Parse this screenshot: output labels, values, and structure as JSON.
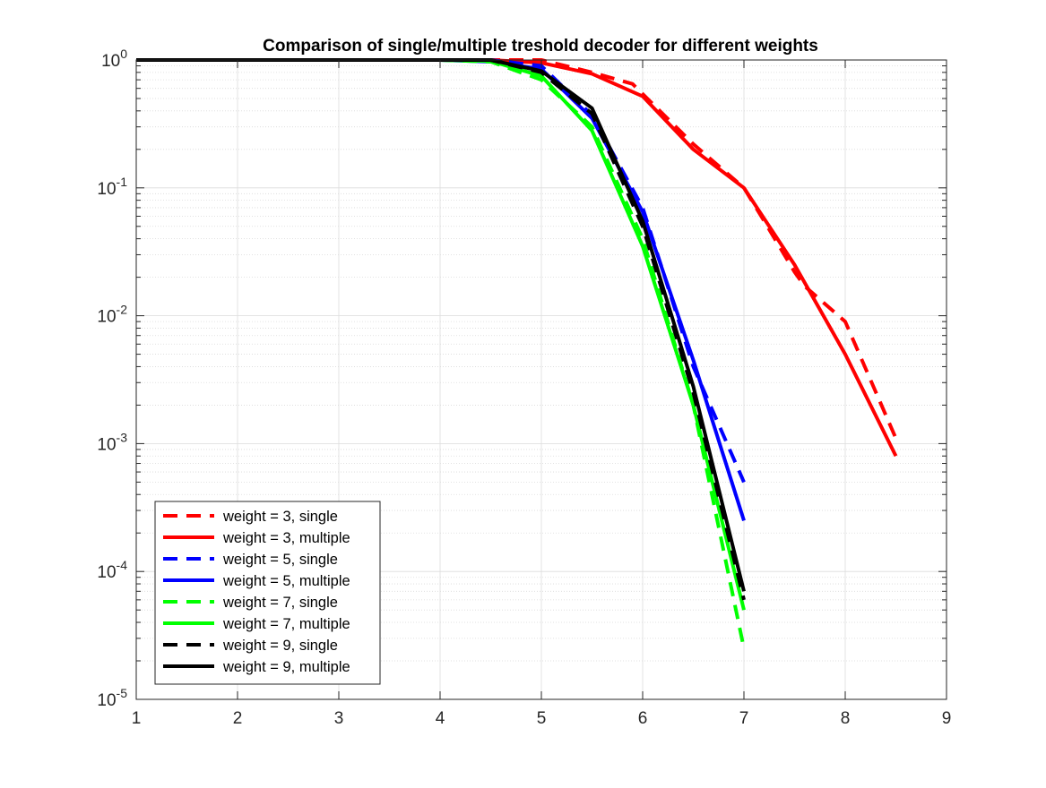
{
  "chart_data": {
    "type": "line",
    "title": "Comparison of single/multiple treshold decoder for different weights",
    "xlabel": "",
    "ylabel": "",
    "xlim": [
      1,
      9
    ],
    "ylim": [
      1e-05,
      1
    ],
    "yscale": "log",
    "grid": true,
    "minor_grid": true,
    "legend_position": "bottom-left",
    "x_ticks": [
      1,
      2,
      3,
      4,
      5,
      6,
      7,
      8,
      9
    ],
    "y_ticks": [
      {
        "value": 1e-05,
        "base": "10",
        "exp": "-5"
      },
      {
        "value": 0.0001,
        "base": "10",
        "exp": "-4"
      },
      {
        "value": 0.001,
        "base": "10",
        "exp": "-3"
      },
      {
        "value": 0.01,
        "base": "10",
        "exp": "-2"
      },
      {
        "value": 0.1,
        "base": "10",
        "exp": "-1"
      },
      {
        "value": 1,
        "base": "10",
        "exp": "0"
      }
    ],
    "series": [
      {
        "name": "weight = 3, single",
        "color": "#ff0000",
        "dash": true,
        "x": [
          1,
          1.5,
          2,
          2.5,
          3,
          3.5,
          4,
          4.5,
          5,
          5.5,
          5.9,
          6.5,
          7,
          7.2,
          7.5,
          7.6,
          8,
          8.5
        ],
        "y": [
          1,
          1,
          1,
          1,
          1,
          1,
          1,
          1,
          1,
          0.8,
          0.65,
          0.22,
          0.1,
          0.055,
          0.022,
          0.017,
          0.009,
          0.0011
        ]
      },
      {
        "name": "weight = 3, multiple",
        "color": "#ff0000",
        "dash": false,
        "x": [
          1,
          1.5,
          2,
          2.5,
          3,
          3.5,
          4,
          4.5,
          5,
          5.5,
          6,
          6.5,
          7,
          7.5,
          8,
          8.5
        ],
        "y": [
          1,
          1,
          1,
          1,
          1,
          1,
          1,
          1,
          0.95,
          0.78,
          0.52,
          0.2,
          0.1,
          0.025,
          0.005,
          0.0008
        ]
      },
      {
        "name": "weight = 5, single",
        "color": "#0000ff",
        "dash": true,
        "x": [
          1,
          1.5,
          2,
          2.5,
          3,
          3.5,
          4,
          4.5,
          5,
          5.5,
          6,
          6.5,
          7
        ],
        "y": [
          1,
          1,
          1,
          1,
          1,
          1,
          1,
          1,
          0.9,
          0.37,
          0.07,
          0.004,
          0.0005
        ]
      },
      {
        "name": "weight = 5, multiple",
        "color": "#0000ff",
        "dash": false,
        "x": [
          1,
          1.5,
          2,
          2.5,
          3,
          3.5,
          4,
          4.5,
          5,
          5.5,
          6,
          6.5,
          7
        ],
        "y": [
          1,
          1,
          1,
          1,
          1,
          1,
          1,
          0.97,
          0.85,
          0.35,
          0.065,
          0.0045,
          0.00025
        ]
      },
      {
        "name": "weight = 7, single",
        "color": "#00ff00",
        "dash": true,
        "x": [
          1,
          1.5,
          2,
          2.5,
          3,
          3.5,
          4,
          4.5,
          5,
          5.5,
          6,
          6.5,
          7
        ],
        "y": [
          1,
          1,
          1,
          1,
          1,
          1,
          1,
          0.97,
          0.7,
          0.3,
          0.04,
          0.002,
          2.5e-05
        ]
      },
      {
        "name": "weight = 7, multiple",
        "color": "#00ff00",
        "dash": false,
        "x": [
          1,
          1.5,
          2,
          2.5,
          3,
          3.5,
          4,
          4.5,
          5,
          5.5,
          6,
          6.5,
          7
        ],
        "y": [
          1,
          1,
          1,
          1,
          1,
          1,
          1,
          0.98,
          0.75,
          0.28,
          0.035,
          0.002,
          5e-05
        ]
      },
      {
        "name": "weight = 9, single",
        "color": "#000000",
        "dash": true,
        "x": [
          1,
          1.5,
          2,
          2.5,
          3,
          3.5,
          4,
          4.5,
          5,
          5.5,
          6,
          6.5,
          7
        ],
        "y": [
          1,
          1,
          1,
          1,
          1,
          1,
          1,
          1,
          0.8,
          0.38,
          0.05,
          0.0025,
          6e-05
        ]
      },
      {
        "name": "weight = 9, multiple",
        "color": "#000000",
        "dash": false,
        "x": [
          1,
          1.5,
          2,
          2.5,
          3,
          3.5,
          4,
          4.5,
          5,
          5.5,
          6,
          6.5,
          7
        ],
        "y": [
          1,
          1,
          1,
          1,
          1,
          1,
          1,
          1,
          0.82,
          0.42,
          0.055,
          0.0028,
          7e-05
        ]
      }
    ]
  }
}
